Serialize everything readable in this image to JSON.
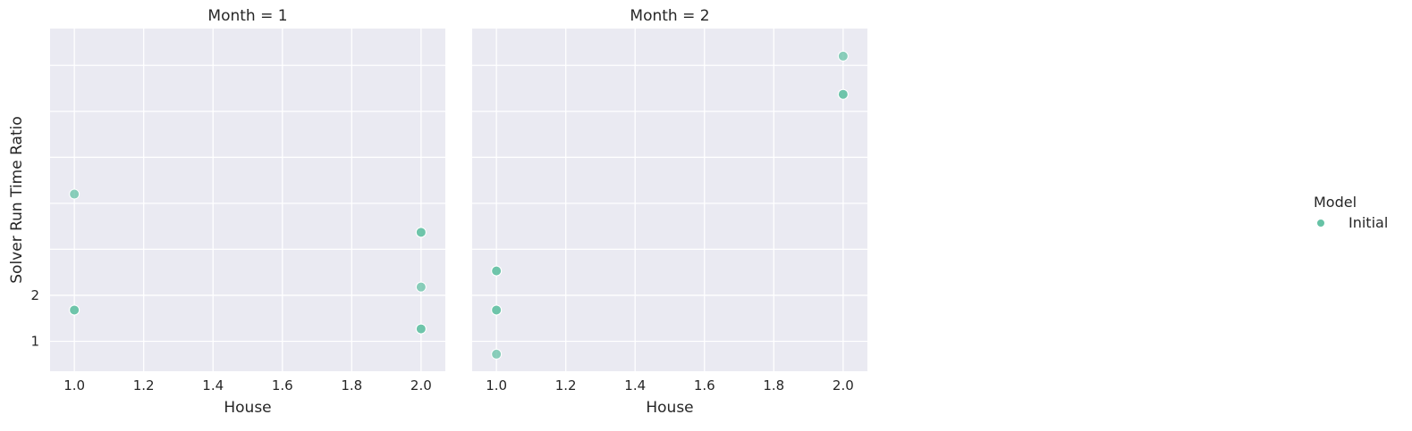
{
  "chart_data": {
    "type": "scatter",
    "facet_by": "Month",
    "xlabel": "House",
    "ylabel": "Solver Run Time Ratio",
    "shared_y": true,
    "xlim": [
      0.93,
      2.07
    ],
    "ylim": [
      0.35,
      7.8
    ],
    "x_ticks": [
      1.0,
      1.2,
      1.4,
      1.6,
      1.8,
      2.0
    ],
    "x_tick_labels": [
      "1.0",
      "1.2",
      "1.4",
      "1.6",
      "1.8",
      "2.0"
    ],
    "y_grid": [
      1,
      2,
      3,
      4,
      5,
      6,
      7
    ],
    "y_tick_values": [
      1,
      2
    ],
    "y_tick_labels": [
      "1",
      "2"
    ],
    "grid": true,
    "legend": {
      "title": "Model",
      "placement": "right",
      "entries": [
        {
          "label": "Initial",
          "color": "#66c2a5"
        }
      ]
    },
    "panels": [
      {
        "title": "Month = 1",
        "series": [
          {
            "name": "Initial",
            "color": "#66c2a5",
            "points": [
              {
                "x": 1.0,
                "y": 4.2,
                "alpha": 0.75
              },
              {
                "x": 1.0,
                "y": 1.68,
                "alpha": 0.75
              },
              {
                "x": 1.0,
                "y": 1.68,
                "alpha": 0.75
              },
              {
                "x": 2.0,
                "y": 3.37,
                "alpha": 0.75
              },
              {
                "x": 2.0,
                "y": 3.37,
                "alpha": 0.75
              },
              {
                "x": 2.0,
                "y": 2.18,
                "alpha": 0.75
              },
              {
                "x": 2.0,
                "y": 1.27,
                "alpha": 0.75
              },
              {
                "x": 2.0,
                "y": 1.27,
                "alpha": 0.75
              }
            ]
          }
        ]
      },
      {
        "title": "Month = 2",
        "series": [
          {
            "name": "Initial",
            "color": "#66c2a5",
            "points": [
              {
                "x": 1.0,
                "y": 2.53,
                "alpha": 0.75
              },
              {
                "x": 1.0,
                "y": 2.53,
                "alpha": 0.75
              },
              {
                "x": 1.0,
                "y": 1.68,
                "alpha": 0.75
              },
              {
                "x": 1.0,
                "y": 1.68,
                "alpha": 0.75
              },
              {
                "x": 1.0,
                "y": 0.72,
                "alpha": 0.75
              },
              {
                "x": 2.0,
                "y": 7.2,
                "alpha": 0.75
              },
              {
                "x": 2.0,
                "y": 6.37,
                "alpha": 0.75
              },
              {
                "x": 2.0,
                "y": 6.37,
                "alpha": 0.75
              }
            ]
          }
        ]
      }
    ]
  }
}
